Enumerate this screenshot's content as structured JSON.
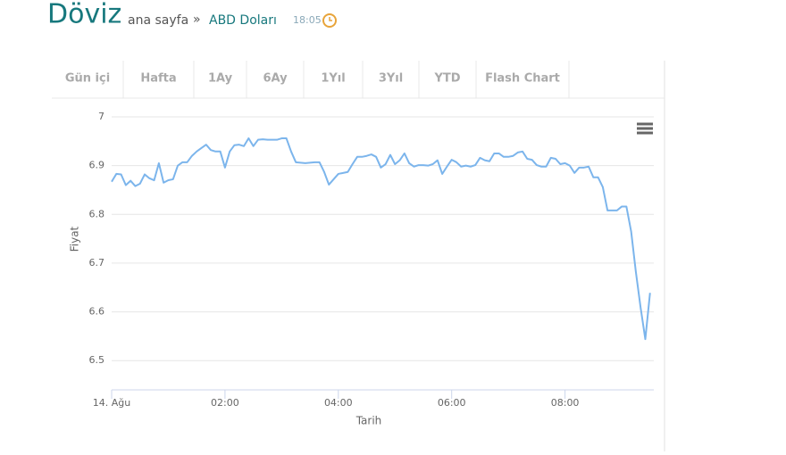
{
  "header": {
    "title": "Döviz",
    "home": "ana sayfa",
    "separator": "»",
    "current": "ABD Doları",
    "time": "18:05"
  },
  "tabs": [
    "Gün içi",
    "Hafta",
    "1Ay",
    "6Ay",
    "1Yıl",
    "3Yıl",
    "YTD",
    "Flash Chart"
  ],
  "chart_data": {
    "type": "line",
    "x_label": "Tarih",
    "y_label": "Fiyat",
    "x": [
      0,
      5,
      10,
      15,
      20,
      25,
      30,
      35,
      40,
      45,
      50,
      55,
      60,
      65,
      70,
      75,
      80,
      85,
      90,
      95,
      100,
      105,
      110,
      115,
      120,
      125,
      130,
      135,
      140,
      145,
      150,
      155,
      160,
      165,
      170,
      175,
      180,
      185,
      190,
      195,
      200,
      205,
      210,
      215,
      220,
      225,
      230,
      235,
      240,
      245,
      250,
      255,
      260,
      265,
      270,
      275,
      280,
      285,
      290,
      295,
      300,
      305,
      310,
      315,
      320,
      325,
      330,
      335,
      340,
      345,
      350,
      355,
      360,
      365,
      370,
      375,
      380,
      385,
      390,
      395,
      400,
      405,
      410,
      415,
      420,
      425,
      430,
      435,
      440,
      445,
      450,
      455,
      460,
      465,
      470,
      475,
      480,
      485,
      490,
      495,
      500,
      505,
      510,
      515,
      520,
      525,
      530,
      535,
      540,
      545,
      550,
      555,
      560,
      565,
      570
    ],
    "series": [
      {
        "name": "ABD Doları",
        "color": "#7cb5ec",
        "values": [
          6.867,
          6.883,
          6.882,
          6.86,
          6.869,
          6.858,
          6.863,
          6.882,
          6.874,
          6.87,
          6.905,
          6.865,
          6.87,
          6.872,
          6.9,
          6.907,
          6.907,
          6.92,
          6.929,
          6.936,
          6.943,
          6.932,
          6.929,
          6.929,
          6.896,
          6.929,
          6.942,
          6.943,
          6.94,
          6.956,
          6.94,
          6.953,
          6.954,
          6.953,
          6.953,
          6.953,
          6.956,
          6.956,
          6.929,
          6.907,
          6.906,
          6.905,
          6.906,
          6.907,
          6.907,
          6.887,
          6.861,
          6.872,
          6.883,
          6.885,
          6.887,
          6.903,
          6.918,
          6.918,
          6.92,
          6.923,
          6.918,
          6.896,
          6.903,
          6.922,
          6.903,
          6.911,
          6.925,
          6.905,
          6.898,
          6.901,
          6.901,
          6.9,
          6.903,
          6.911,
          6.883,
          6.898,
          6.912,
          6.907,
          6.898,
          6.9,
          6.898,
          6.901,
          6.916,
          6.911,
          6.909,
          6.925,
          6.925,
          6.918,
          6.918,
          6.92,
          6.927,
          6.929,
          6.914,
          6.912,
          6.901,
          6.898,
          6.898,
          6.916,
          6.914,
          6.903,
          6.905,
          6.9,
          6.885,
          6.896,
          6.896,
          6.898,
          6.876,
          6.876,
          6.856,
          6.808,
          6.808,
          6.808,
          6.816,
          6.816,
          6.765,
          6.682,
          6.609,
          6.544,
          6.639
        ]
      }
    ],
    "xlim": [
      0,
      574
    ],
    "xticks": [
      {
        "value": 0,
        "label": "14. Ağu"
      },
      {
        "value": 120,
        "label": "02:00"
      },
      {
        "value": 240,
        "label": "04:00"
      },
      {
        "value": 360,
        "label": "06:00"
      },
      {
        "value": 480,
        "label": "08:00"
      }
    ],
    "ylim": [
      6.44,
      7
    ],
    "yticks": [
      6.5,
      6.6,
      6.7,
      6.8,
      6.9,
      7
    ],
    "grid": true
  }
}
